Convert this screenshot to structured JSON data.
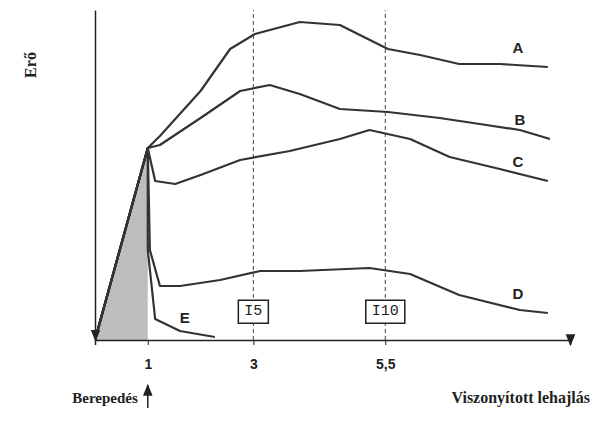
{
  "chart_data": {
    "type": "line",
    "x_label": "Viszonyított lehajlás",
    "y_label": "Erő",
    "xlim": [
      0,
      9
    ],
    "ylim": [
      0,
      110
    ],
    "xticks": [
      1,
      3,
      {
        "value": 5.5,
        "label": "5,5"
      }
    ],
    "tick_labels": "x",
    "color": "#333333",
    "series": [
      {
        "name": "A",
        "x": [
          0,
          1,
          1.23,
          2.0,
          2.56,
          3.03,
          3.88,
          4.64,
          5.55,
          6.16,
          6.9,
          7.67,
          8.58
        ],
        "values": [
          0,
          64,
          68,
          83,
          97,
          102,
          106,
          105,
          97,
          95,
          92,
          92,
          91
        ]
      },
      {
        "name": "B",
        "x": [
          0,
          1,
          1.23,
          2.0,
          2.75,
          3.31,
          3.88,
          4.64,
          5.55,
          6.53,
          7.29,
          8.05,
          8.62
        ],
        "values": [
          0,
          64,
          65,
          74,
          83,
          85,
          82,
          77,
          76,
          74,
          72,
          70,
          67
        ]
      },
      {
        "name": "C",
        "x": [
          0,
          1,
          1.14,
          1.52,
          2.0,
          2.75,
          3.69,
          4.64,
          5.2,
          5.97,
          6.72,
          7.67,
          8.58
        ],
        "values": [
          0,
          64,
          53,
          52,
          55,
          60,
          63,
          67,
          70,
          67,
          61,
          57,
          53
        ]
      },
      {
        "name": "D",
        "x": [
          0,
          1,
          1.04,
          1.23,
          1.61,
          2.37,
          3.13,
          3.88,
          5.2,
          5.97,
          6.9,
          8.05,
          8.58
        ],
        "values": [
          0,
          64,
          30,
          18,
          18,
          20,
          23,
          23,
          24,
          22,
          15,
          10,
          9
        ]
      },
      {
        "name": "E",
        "x": [
          0,
          1,
          1.0,
          1.14,
          1.61,
          2.27
        ],
        "values": [
          0,
          64,
          30,
          7,
          3,
          1
        ]
      }
    ],
    "annotations": [
      {
        "text": "I5",
        "x": 3,
        "y": 10
      },
      {
        "text": "I10",
        "x": 5.5,
        "y": 10
      },
      {
        "text": "Berepedés",
        "x": 1
      }
    ]
  }
}
